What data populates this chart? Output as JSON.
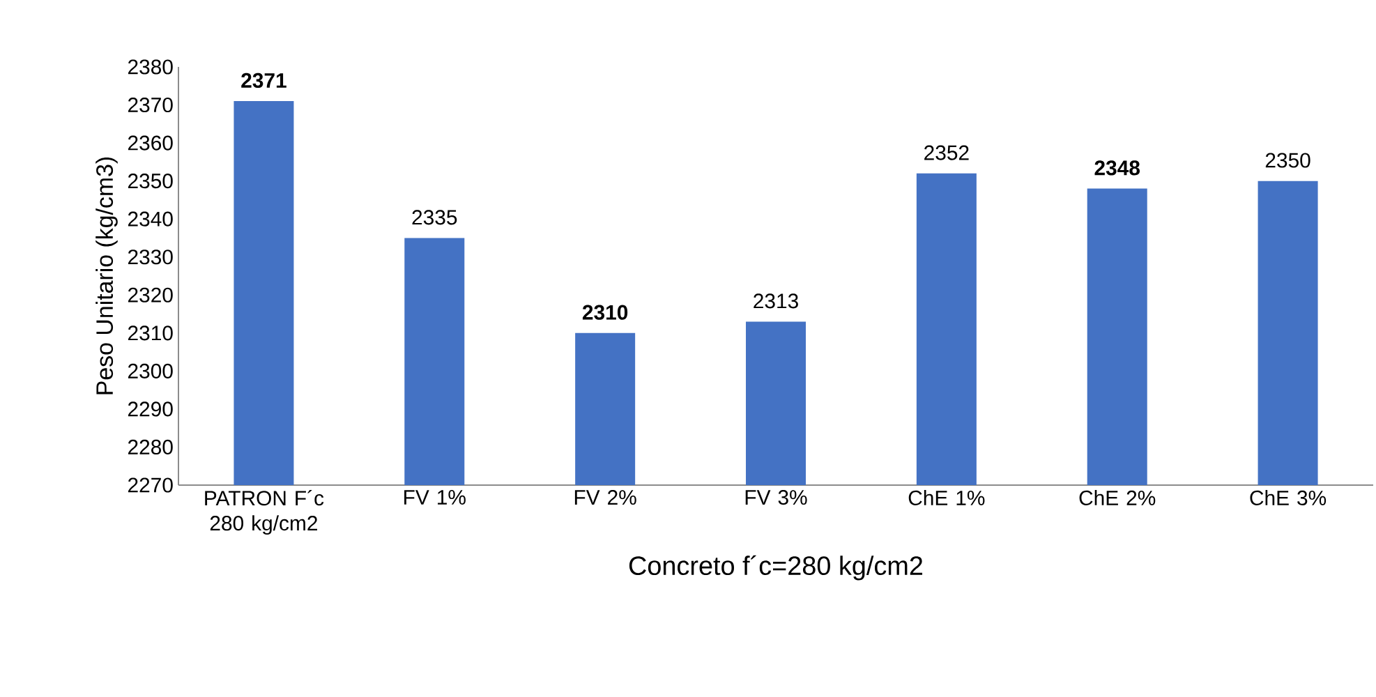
{
  "chart_data": {
    "type": "bar",
    "xlabel": "Concreto f´c=280 kg/cm2",
    "ylabel": "Peso Unitario (kg/cm3)",
    "categories": [
      "PATRON F´c 280 kg/cm2",
      "FV 1%",
      "FV 2%",
      "FV 3%",
      "ChE 1%",
      "ChE 2%",
      "ChE 3%"
    ],
    "values": [
      2371,
      2335,
      2310,
      2313,
      2352,
      2348,
      2350
    ],
    "value_labels": [
      "**2371**",
      "2335",
      "**2310**",
      "2313",
      "2352",
      "**2348**",
      "2350"
    ],
    "color": "#4472c4",
    "ylim": [
      2270,
      2380
    ],
    "yticks": [
      2270,
      2280,
      2290,
      2300,
      2310,
      2320,
      2330,
      2340,
      2350,
      2360,
      2370,
      2380
    ],
    "grid": false
  }
}
